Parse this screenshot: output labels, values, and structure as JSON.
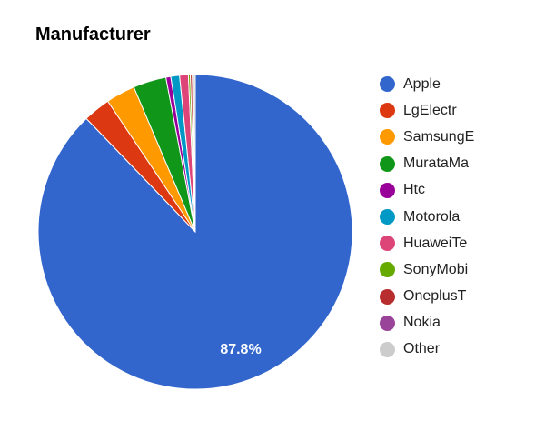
{
  "chart_data": {
    "type": "pie",
    "title": "Manufacturer",
    "categories": [
      "Apple",
      "LgElectr",
      "SamsungE",
      "MurataMa",
      "Htc",
      "Motorola",
      "HuaweiTe",
      "SonyMobi",
      "OneplusT",
      "Nokia",
      "Other"
    ],
    "values": [
      87.8,
      2.8,
      3.0,
      3.4,
      0.5,
      0.9,
      0.9,
      0.2,
      0.2,
      0.1,
      0.2
    ],
    "colors": [
      "#3366cc",
      "#dc3912",
      "#ff9900",
      "#109618",
      "#990099",
      "#0099c6",
      "#dd4477",
      "#66aa00",
      "#b82e2e",
      "#994499",
      "#cccccc"
    ],
    "data_labels": [
      {
        "category": "Apple",
        "text": "87.8%"
      }
    ],
    "legend_position": "right",
    "start_angle_deg": 0,
    "direction": "clockwise"
  },
  "header": {
    "title": "Manufacturer"
  }
}
